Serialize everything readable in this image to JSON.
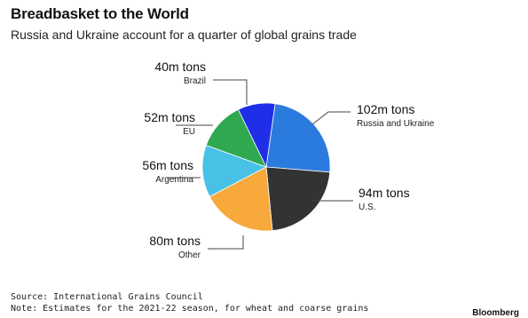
{
  "header": {
    "title": "Breadbasket to the World",
    "subtitle": "Russia and Ukraine account for a quarter of global grains trade"
  },
  "footer": {
    "source": "Source: International Grains Council",
    "note": "Note: Estimates for the 2021-22 season, for wheat and coarse grains",
    "brand": "Bloomberg"
  },
  "chart_data": {
    "type": "pie",
    "title": "Breadbasket to the World",
    "subtitle": "Russia and Ukraine account for a quarter of global grains trade",
    "unit": "m tons",
    "slices": [
      {
        "label": "Russia and Ukraine",
        "value_text": "102m tons",
        "value": 102,
        "color": "#2b7bde"
      },
      {
        "label": "U.S.",
        "value_text": "94m tons",
        "value": 94,
        "color": "#333333"
      },
      {
        "label": "Other",
        "value_text": "80m tons",
        "value": 80,
        "color": "#f7a93b"
      },
      {
        "label": "Argentina",
        "value_text": "56m tons",
        "value": 56,
        "color": "#48c1e6"
      },
      {
        "label": "EU",
        "value_text": "52m tons",
        "value": 52,
        "color": "#2fa84f"
      },
      {
        "label": "Brazil",
        "value_text": "40m tons",
        "value": 40,
        "color": "#1f2fe8"
      }
    ]
  }
}
